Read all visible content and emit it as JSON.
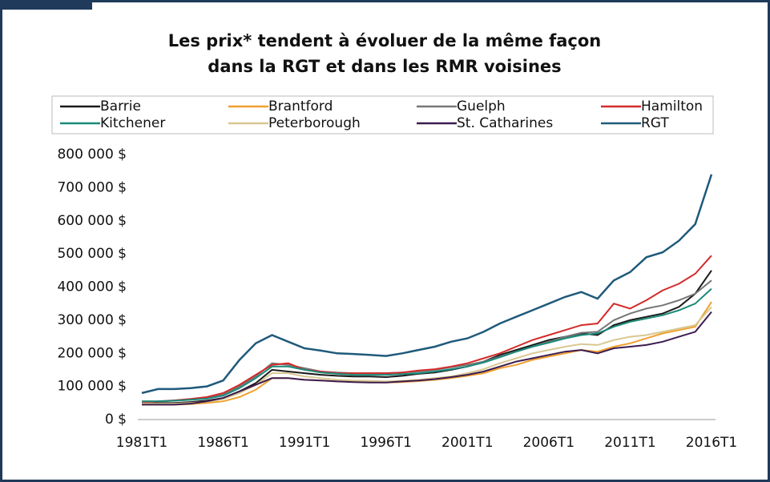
{
  "chart_data": {
    "type": "line",
    "title": [
      "Les prix* tendent à évoluer de la même façon",
      "dans la RGT et dans les RMR voisines"
    ],
    "categories": [
      "1981T1",
      null,
      null,
      null,
      null,
      "1986T1",
      null,
      null,
      null,
      null,
      "1991T1",
      null,
      null,
      null,
      null,
      "1996T1",
      null,
      null,
      null,
      null,
      "2001T1",
      null,
      null,
      null,
      null,
      "2006T1",
      null,
      null,
      null,
      null,
      "2011T1",
      null,
      null,
      null,
      null,
      "2016T1"
    ],
    "ylim": [
      0,
      800000
    ],
    "yticks": [
      {
        "value": 0,
        "label": "0 $"
      },
      {
        "value": 100000,
        "label": "100 000 $"
      },
      {
        "value": 200000,
        "label": "200 000 $"
      },
      {
        "value": 300000,
        "label": "300 000 $"
      },
      {
        "value": 400000,
        "label": "400 000 $"
      },
      {
        "value": 500000,
        "label": "500 000 $"
      },
      {
        "value": 600000,
        "label": "600 000 $"
      },
      {
        "value": 700000,
        "label": "700 000 $"
      },
      {
        "value": 800000,
        "label": "800 000 $"
      }
    ],
    "grid": false,
    "series": [
      {
        "name": "Barrie",
        "color": "#1a1a1a",
        "values": [
          48000,
          50000,
          50000,
          53000,
          57000,
          65000,
          85000,
          110000,
          150000,
          145000,
          140000,
          135000,
          132000,
          130000,
          130000,
          128000,
          132000,
          138000,
          142000,
          150000,
          160000,
          175000,
          195000,
          210000,
          225000,
          240000,
          250000,
          260000,
          255000,
          285000,
          300000,
          310000,
          320000,
          340000,
          380000,
          450000
        ]
      },
      {
        "name": "Brantford",
        "color": "#f0a030",
        "values": [
          45000,
          45000,
          45000,
          47000,
          50000,
          55000,
          68000,
          90000,
          125000,
          125000,
          120000,
          118000,
          115000,
          115000,
          113000,
          112000,
          113000,
          116000,
          120000,
          125000,
          132000,
          140000,
          155000,
          165000,
          180000,
          190000,
          200000,
          210000,
          205000,
          220000,
          230000,
          245000,
          260000,
          270000,
          280000,
          355000
        ]
      },
      {
        "name": "Guelph",
        "color": "#777777",
        "values": [
          55000,
          55000,
          57000,
          60000,
          65000,
          75000,
          100000,
          130000,
          170000,
          165000,
          155000,
          145000,
          142000,
          140000,
          140000,
          140000,
          142000,
          145000,
          150000,
          158000,
          165000,
          175000,
          190000,
          205000,
          220000,
          235000,
          250000,
          262000,
          265000,
          300000,
          320000,
          335000,
          345000,
          360000,
          380000,
          420000
        ]
      },
      {
        "name": "Hamilton",
        "color": "#d42a2a",
        "values": [
          50000,
          55000,
          58000,
          62000,
          68000,
          80000,
          105000,
          135000,
          165000,
          170000,
          150000,
          145000,
          140000,
          140000,
          140000,
          140000,
          142000,
          148000,
          152000,
          160000,
          170000,
          185000,
          200000,
          220000,
          240000,
          255000,
          270000,
          285000,
          290000,
          350000,
          335000,
          360000,
          390000,
          410000,
          440000,
          495000
        ]
      },
      {
        "name": "Kitchener",
        "color": "#1a8a7a",
        "values": [
          55000,
          55000,
          57000,
          60000,
          63000,
          72000,
          95000,
          125000,
          160000,
          160000,
          150000,
          142000,
          138000,
          135000,
          135000,
          135000,
          137000,
          140000,
          145000,
          152000,
          160000,
          172000,
          188000,
          205000,
          220000,
          232000,
          245000,
          255000,
          260000,
          280000,
          295000,
          305000,
          315000,
          330000,
          350000,
          395000
        ]
      },
      {
        "name": "Peterborough",
        "color": "#d8c890",
        "values": [
          48000,
          48000,
          48000,
          50000,
          54000,
          62000,
          80000,
          105000,
          140000,
          140000,
          130000,
          125000,
          120000,
          118000,
          117000,
          115000,
          117000,
          120000,
          125000,
          130000,
          140000,
          152000,
          170000,
          185000,
          200000,
          210000,
          220000,
          228000,
          225000,
          240000,
          250000,
          255000,
          265000,
          275000,
          285000,
          340000
        ]
      },
      {
        "name": "St. Catharines",
        "color": "#3c1c50",
        "values": [
          45000,
          45000,
          45000,
          48000,
          55000,
          65000,
          85000,
          105000,
          125000,
          125000,
          120000,
          118000,
          115000,
          113000,
          112000,
          112000,
          115000,
          118000,
          122000,
          128000,
          135000,
          145000,
          160000,
          175000,
          185000,
          195000,
          205000,
          210000,
          200000,
          215000,
          220000,
          225000,
          235000,
          250000,
          265000,
          325000
        ]
      },
      {
        "name": "RGT",
        "color": "#1f5a7a",
        "values": [
          80000,
          92000,
          92000,
          95000,
          100000,
          118000,
          180000,
          230000,
          255000,
          235000,
          215000,
          208000,
          200000,
          198000,
          195000,
          192000,
          200000,
          210000,
          220000,
          235000,
          245000,
          265000,
          290000,
          310000,
          330000,
          350000,
          370000,
          385000,
          365000,
          420000,
          445000,
          490000,
          505000,
          540000,
          590000,
          740000
        ]
      }
    ]
  }
}
